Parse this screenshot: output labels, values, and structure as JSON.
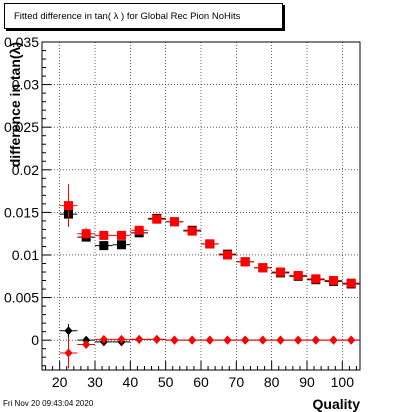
{
  "canvas": {
    "title": "Fitted difference in tan( λ ) for Global Rec Pion NoHits",
    "timestamp": "Fri Nov 20 09:43:04 2020"
  },
  "chart_data": {
    "type": "scatter",
    "title": "Fitted difference in tan( λ ) for Global Rec Pion NoHits",
    "xlabel": "Quality",
    "ylabel": "difference in tan(λ)",
    "xlim": [
      15,
      105
    ],
    "ylim": [
      -0.0035,
      0.035
    ],
    "xticks": [
      20,
      30,
      40,
      50,
      60,
      70,
      80,
      90,
      100
    ],
    "xtick_labels": [
      "20",
      "30",
      "40",
      "50",
      "60",
      "70",
      "80",
      "90",
      "100"
    ],
    "yticks": [
      0,
      0.005,
      0.01,
      0.015,
      0.02,
      0.025,
      0.03,
      0.035
    ],
    "ytick_labels": [
      "0",
      "0.005",
      "0.01",
      "0.015",
      "0.02",
      "0.025",
      "0.03",
      "0.035"
    ],
    "grid": true,
    "legend": "none",
    "x": [
      22.5,
      27.5,
      32.5,
      37.5,
      42.5,
      47.5,
      52.5,
      57.5,
      62.5,
      67.5,
      72.5,
      77.5,
      82.5,
      87.5,
      92.5,
      97.5,
      102.5
    ],
    "x_halfwidth": 2.5,
    "series": [
      {
        "marker": "square",
        "color": "#000000",
        "values": [
          0.0148,
          0.0121,
          0.0111,
          0.0112,
          0.0126,
          0.0143,
          0.0139,
          0.0129,
          0.0113,
          0.0101,
          0.0092,
          0.0085,
          0.0079,
          0.0075,
          0.0071,
          0.0069,
          0.0066
        ],
        "errors": [
          0.0007,
          0.0004,
          0.0003,
          0.0003,
          0.0003,
          0.0003,
          0.0002,
          0.0002,
          0.0002,
          0.0002,
          0.0002,
          0.0002,
          0.0002,
          0.0002,
          0.0002,
          0.0002,
          0.0002
        ]
      },
      {
        "marker": "square",
        "color": "#ff0000",
        "values": [
          0.0158,
          0.0125,
          0.0123,
          0.0123,
          0.0129,
          0.0142,
          0.0139,
          0.0128,
          0.0113,
          0.01,
          0.0092,
          0.0085,
          0.008,
          0.0076,
          0.0072,
          0.007,
          0.0067
        ],
        "errors": [
          0.0025,
          0.0007,
          0.0005,
          0.0004,
          0.0003,
          0.0003,
          0.0003,
          0.0002,
          0.0002,
          0.0002,
          0.0002,
          0.0002,
          0.0002,
          0.0002,
          0.0002,
          0.0002,
          0.0002
        ]
      },
      {
        "marker": "diamond",
        "color": "#000000",
        "values": [
          0.0011,
          0.0,
          -0.0002,
          -0.0002,
          0.0001,
          0.0001,
          0.0,
          0.0,
          0.0,
          0.0,
          0.0,
          0.0,
          0.0,
          0.0,
          0.0,
          0.0,
          0.0
        ],
        "errors": [
          0.0008,
          0.0003,
          0.0002,
          0.0002,
          0.0001,
          0.0001,
          0.0001,
          0.0001,
          0.0001,
          0.0001,
          0.0001,
          0.0001,
          0.0001,
          0.0001,
          0.0001,
          0.0001,
          0.0001
        ]
      },
      {
        "marker": "diamond",
        "color": "#ff0000",
        "values": [
          -0.0015,
          -0.0005,
          0.0001,
          0.0001,
          0.0001,
          0.0001,
          0.0,
          0.0,
          0.0,
          0.0,
          0.0,
          0.0,
          0.0,
          0.0,
          0.0,
          0.0,
          0.0
        ],
        "errors": [
          0.0018,
          0.0004,
          0.0002,
          0.0002,
          0.0001,
          0.0001,
          0.0001,
          0.0001,
          0.0001,
          0.0001,
          0.0001,
          0.0001,
          0.0001,
          0.0001,
          0.0001,
          0.0001,
          0.0001
        ]
      }
    ]
  }
}
